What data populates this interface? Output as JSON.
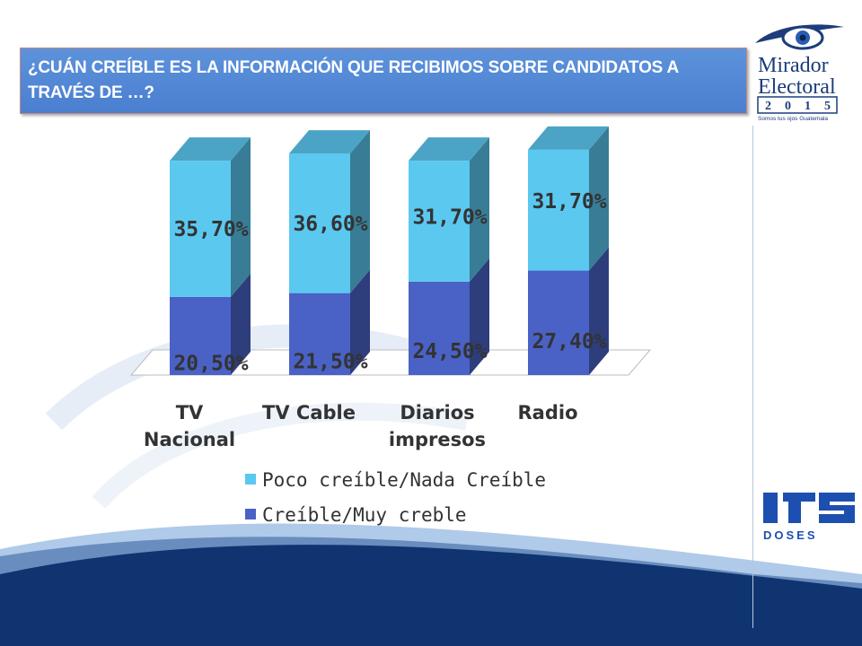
{
  "slide": {
    "title": "¿CUÁN CREÍBLE ES LA INFORMACIÓN QUE RECIBIMOS SOBRE CANDIDATOS A TRAVÉS DE …?",
    "logo_mirador": {
      "line1": "Mirador",
      "line2": "Electoral",
      "year": [
        "2",
        "0",
        "1",
        "5"
      ],
      "tagline": "Somos tus ojos Guatemala"
    },
    "logo_doses": {
      "text": "DOSES"
    }
  },
  "chart_data": {
    "type": "bar",
    "stacked": true,
    "three_d": true,
    "categories": [
      "TV Nacional",
      "TV Cable",
      "Diarios impresos",
      "Radio"
    ],
    "category_lines": [
      [
        "TV",
        "Nacional"
      ],
      [
        "TV Cable"
      ],
      [
        "Diarios",
        "impresos"
      ],
      [
        "Radio"
      ]
    ],
    "series": [
      {
        "name": "Creíble/Muy creble",
        "values": [
          20.5,
          21.5,
          24.5,
          27.4
        ],
        "labels": [
          "20,50%",
          "21,50%",
          "24,50%",
          "27,40%"
        ],
        "color": "#4a62c6"
      },
      {
        "name": "Poco creíble/Nada Creíble",
        "values": [
          35.7,
          36.6,
          31.7,
          31.7
        ],
        "labels": [
          "35,70%",
          "36,60%",
          "31,70%",
          "31,70%"
        ],
        "color": "#5bc8f0"
      }
    ],
    "legend": [
      {
        "label": "Poco creíble/Nada Creíble",
        "color": "#5bc8f0"
      },
      {
        "label": "Creíble/Muy creble",
        "color": "#4a62c6"
      }
    ],
    "legend_position": "bottom",
    "grid": false
  }
}
